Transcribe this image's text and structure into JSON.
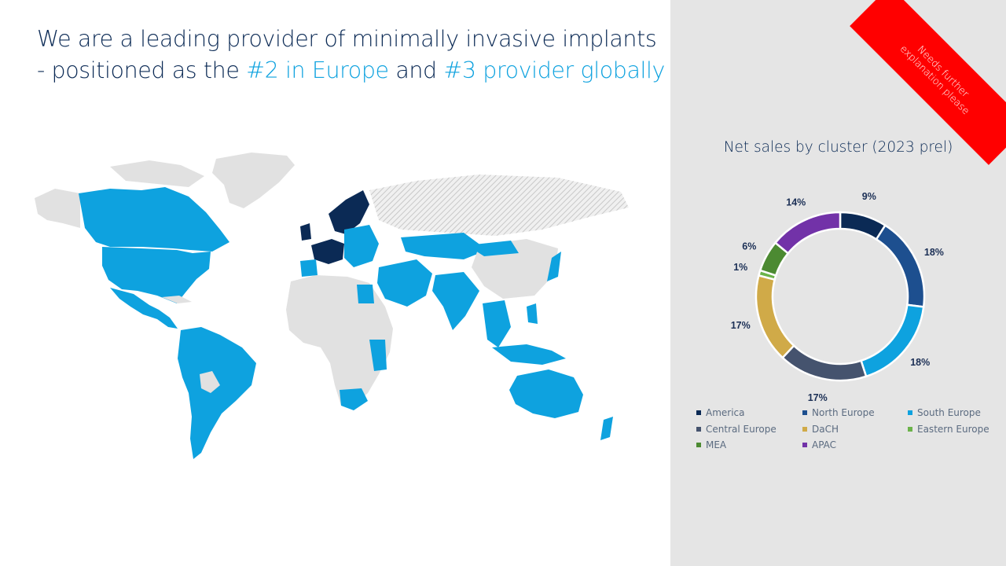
{
  "title": {
    "line1": "We are a leading provider of minimally invasive implants",
    "line2_pre": "- positioned as the ",
    "line2_hl1": "#2 in Europe",
    "line2_mid": " and ",
    "line2_hl2": "#3 provider globally"
  },
  "ribbon": {
    "line1": "Needs further",
    "line2": "explanation please"
  },
  "map": {
    "colors": {
      "presence": "#0ea2df",
      "home_market": "#0b2a55",
      "no_presence": "#e1e1e1",
      "hatched_region": "#cfcfcf"
    }
  },
  "chart_data": {
    "type": "pie",
    "title": "Net sales by cluster (2023 prel)",
    "categories": [
      "America",
      "North Europe",
      "South Europe",
      "Central Europe",
      "DaCH",
      "Eastern Europe",
      "MEA",
      "APAC"
    ],
    "values": [
      9,
      18,
      18,
      17,
      17,
      1,
      6,
      14
    ],
    "labels": [
      "9%",
      "18%",
      "18%",
      "17%",
      "17%",
      "1%",
      "6%",
      "14%"
    ],
    "colors": [
      "#0b2a55",
      "#1d4f8f",
      "#0ea2df",
      "#45536e",
      "#d0aa48",
      "#6bb34a",
      "#4c8a32",
      "#7232a8"
    ],
    "legend_position": "bottom"
  }
}
